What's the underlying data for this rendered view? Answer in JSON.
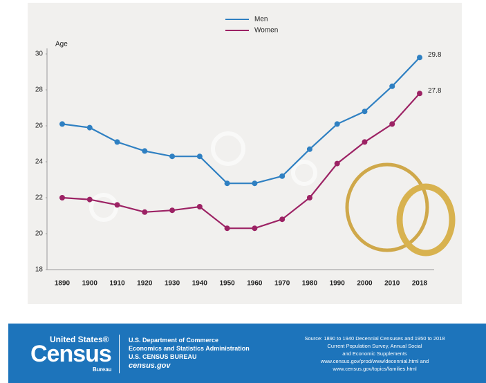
{
  "chart_data": {
    "type": "line",
    "y_label": "Age",
    "categories": [
      "1890",
      "1900",
      "1910",
      "1920",
      "1930",
      "1940",
      "1950",
      "1960",
      "1970",
      "1980",
      "1990",
      "2000",
      "2010",
      "2018"
    ],
    "series": [
      {
        "name": "Men",
        "color": "#2f80c2",
        "values": [
          26.1,
          25.9,
          25.1,
          24.6,
          24.3,
          24.3,
          22.8,
          22.8,
          23.2,
          24.7,
          26.1,
          26.8,
          28.2,
          29.8
        ]
      },
      {
        "name": "Women",
        "color": "#9c2264",
        "values": [
          22.0,
          21.9,
          21.6,
          21.2,
          21.3,
          21.5,
          20.3,
          20.3,
          20.8,
          22.0,
          23.9,
          25.1,
          26.1,
          27.8
        ]
      }
    ],
    "ylim": [
      18,
      30
    ],
    "yticks": [
      18,
      20,
      22,
      24,
      26,
      28,
      30
    ],
    "grid": false
  },
  "footer": {
    "logo": {
      "top": "United States®",
      "main": "Census",
      "bottom": "Bureau"
    },
    "agency": [
      "U.S. Department of Commerce",
      "Economics and Statistics Administration",
      "U.S. CENSUS BUREAU",
      "census.gov"
    ],
    "source": [
      "Source: 1890 to 1940 Decennial Censuses and 1950 to 2018",
      "Current Population Survey, Annual Social",
      "and Economic Supplements",
      "www.census.gov/prod/www/decennial.html and",
      "www.census.gov/topics/families.html"
    ]
  }
}
